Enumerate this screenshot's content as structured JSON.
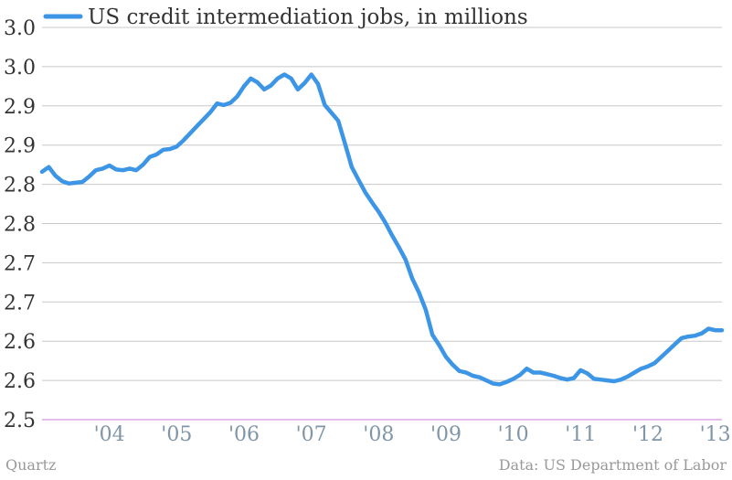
{
  "chart_data": {
    "type": "line",
    "legend": "US credit intermediation jobs, in millions",
    "legend_position": "top-left",
    "line_color": "#3d95e5",
    "grid": true,
    "ylim": [
      2.5,
      3.0
    ],
    "y_ticks": [
      {
        "value": 2.5,
        "label": "2.5"
      },
      {
        "value": 2.55,
        "label": "2.6"
      },
      {
        "value": 2.6,
        "label": "2.6"
      },
      {
        "value": 2.65,
        "label": "2.7"
      },
      {
        "value": 2.7,
        "label": "2.7"
      },
      {
        "value": 2.75,
        "label": "2.8"
      },
      {
        "value": 2.8,
        "label": "2.8"
      },
      {
        "value": 2.85,
        "label": "2.9"
      },
      {
        "value": 2.9,
        "label": "2.9"
      },
      {
        "value": 2.95,
        "label": "3.0"
      },
      {
        "value": 3.0,
        "label": "3.0"
      }
    ],
    "xlim": [
      2003.0,
      2013.1
    ],
    "x_ticks": [
      {
        "value": 2004.0,
        "label": "'04"
      },
      {
        "value": 2005.0,
        "label": "'05"
      },
      {
        "value": 2006.0,
        "label": "'06"
      },
      {
        "value": 2007.0,
        "label": "'07"
      },
      {
        "value": 2008.0,
        "label": "'08"
      },
      {
        "value": 2009.0,
        "label": "'09"
      },
      {
        "value": 2010.0,
        "label": "'10"
      },
      {
        "value": 2011.0,
        "label": "'11"
      },
      {
        "value": 2012.0,
        "label": "'12"
      },
      {
        "value": 2013.0,
        "label": "'13"
      }
    ],
    "x": [
      2003.0,
      2003.1,
      2003.2,
      2003.3,
      2003.4,
      2003.5,
      2003.6,
      2003.7,
      2003.8,
      2003.9,
      2004.0,
      2004.1,
      2004.2,
      2004.3,
      2004.4,
      2004.5,
      2004.6,
      2004.7,
      2004.8,
      2004.9,
      2005.0,
      2005.1,
      2005.2,
      2005.3,
      2005.4,
      2005.5,
      2005.6,
      2005.7,
      2005.8,
      2005.9,
      2006.0,
      2006.1,
      2006.2,
      2006.3,
      2006.4,
      2006.5,
      2006.6,
      2006.7,
      2006.8,
      2006.9,
      2007.0,
      2007.1,
      2007.2,
      2007.3,
      2007.4,
      2007.5,
      2007.6,
      2007.7,
      2007.8,
      2007.9,
      2008.0,
      2008.1,
      2008.2,
      2008.3,
      2008.4,
      2008.5,
      2008.6,
      2008.7,
      2008.8,
      2008.9,
      2009.0,
      2009.1,
      2009.2,
      2009.3,
      2009.4,
      2009.5,
      2009.6,
      2009.7,
      2009.8,
      2009.9,
      2010.0,
      2010.1,
      2010.2,
      2010.3,
      2010.4,
      2010.5,
      2010.6,
      2010.7,
      2010.8,
      2010.9,
      2011.0,
      2011.1,
      2011.2,
      2011.3,
      2011.4,
      2011.5,
      2011.6,
      2011.7,
      2011.8,
      2011.9,
      2012.0,
      2012.1,
      2012.2,
      2012.3,
      2012.4,
      2012.5,
      2012.6,
      2012.7,
      2012.8,
      2012.9,
      2013.0,
      2013.1
    ],
    "y": [
      2.816,
      2.822,
      2.811,
      2.804,
      2.801,
      2.802,
      2.803,
      2.81,
      2.818,
      2.82,
      2.824,
      2.819,
      2.818,
      2.82,
      2.818,
      2.825,
      2.835,
      2.838,
      2.844,
      2.845,
      2.848,
      2.856,
      2.865,
      2.874,
      2.883,
      2.892,
      2.903,
      2.901,
      2.904,
      2.912,
      2.925,
      2.935,
      2.93,
      2.921,
      2.926,
      2.935,
      2.94,
      2.935,
      2.921,
      2.929,
      2.94,
      2.928,
      2.901,
      2.891,
      2.881,
      2.852,
      2.822,
      2.806,
      2.79,
      2.777,
      2.765,
      2.751,
      2.735,
      2.72,
      2.704,
      2.68,
      2.662,
      2.64,
      2.608,
      2.595,
      2.58,
      2.57,
      2.562,
      2.56,
      2.556,
      2.554,
      2.55,
      2.546,
      2.545,
      2.548,
      2.552,
      2.557,
      2.565,
      2.56,
      2.56,
      2.558,
      2.556,
      2.553,
      2.551,
      2.553,
      2.563,
      2.559,
      2.552,
      2.551,
      2.55,
      2.549,
      2.551,
      2.555,
      2.56,
      2.565,
      2.568,
      2.572,
      2.58,
      2.588,
      2.596,
      2.604,
      2.606,
      2.607,
      2.61,
      2.616,
      2.614,
      2.614
    ]
  },
  "footer": {
    "source_left": "Quartz",
    "source_right": "Data: US Department of Labor"
  }
}
